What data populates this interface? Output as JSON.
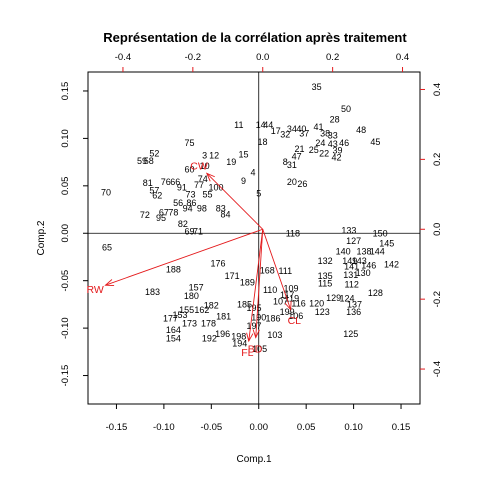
{
  "chart_data": {
    "type": "scatter",
    "subtype": "biplot",
    "title": "Représentation de la corrélation après traitement",
    "xlabel": "Comp.1",
    "ylabel": "Comp.2",
    "xlim": [
      -0.18,
      0.17
    ],
    "ylim": [
      -0.18,
      0.17
    ],
    "xticks": [
      -0.15,
      -0.1,
      -0.05,
      0.0,
      0.05,
      0.1,
      0.15
    ],
    "yticks": [
      -0.15,
      -0.1,
      -0.05,
      0.0,
      0.05,
      0.1,
      0.15
    ],
    "xtick_labels": [
      "-0.15",
      "-0.10",
      "-0.05",
      "0.00",
      "0.05",
      "0.10",
      "0.15"
    ],
    "ytick_labels": [
      "-0.15",
      "-0.10",
      "-0.05",
      "0.00",
      "0.05",
      "0.10",
      "0.15"
    ],
    "top_axis": {
      "lim": [
        -0.5,
        0.45
      ],
      "ticks": [
        -0.4,
        -0.2,
        0.0,
        0.2,
        0.4
      ],
      "tick_labels": [
        "-0.4",
        "-0.2",
        "0.0",
        "0.2",
        "0.4"
      ]
    },
    "right_axis": {
      "lim": [
        -0.5,
        0.45
      ],
      "ticks": [
        -0.4,
        -0.2,
        0.0,
        0.2,
        0.4
      ],
      "tick_labels": [
        "-0.4",
        "-0.2",
        "0.0",
        "0.2",
        "0.4"
      ]
    },
    "arrow_color": "#e41a1c",
    "variables": [
      {
        "name": "CW",
        "x": -0.16,
        "y": 0.16
      },
      {
        "name": "RW",
        "x": -0.45,
        "y": -0.16
      },
      {
        "name": "FL",
        "x": -0.04,
        "y": -0.32
      },
      {
        "name": "BD",
        "x": -0.02,
        "y": -0.31
      },
      {
        "name": "CL",
        "x": 0.08,
        "y": -0.23
      }
    ],
    "points": [
      [
        "35",
        0.061,
        0.154
      ],
      [
        "50",
        0.092,
        0.131
      ],
      [
        "28",
        0.08,
        0.12
      ],
      [
        "48",
        0.108,
        0.109
      ],
      [
        "45",
        0.123,
        0.096
      ],
      [
        "11",
        -0.021,
        0.114
      ],
      [
        "14",
        0.002,
        0.114
      ],
      [
        "44",
        0.01,
        0.114
      ],
      [
        "17",
        0.018,
        0.108
      ],
      [
        "32",
        0.028,
        0.104
      ],
      [
        "34",
        0.035,
        0.11
      ],
      [
        "40",
        0.045,
        0.11
      ],
      [
        "41",
        0.063,
        0.112
      ],
      [
        "37",
        0.048,
        0.105
      ],
      [
        "38",
        0.07,
        0.105
      ],
      [
        "33",
        0.078,
        0.103
      ],
      [
        "18",
        0.004,
        0.096
      ],
      [
        "21",
        0.043,
        0.089
      ],
      [
        "24",
        0.065,
        0.095
      ],
      [
        "43",
        0.078,
        0.094
      ],
      [
        "46",
        0.09,
        0.095
      ],
      [
        "25",
        0.058,
        0.088
      ],
      [
        "47",
        0.04,
        0.081
      ],
      [
        "22",
        0.069,
        0.084
      ],
      [
        "39",
        0.083,
        0.087
      ],
      [
        "42",
        0.082,
        0.08
      ],
      [
        "8",
        0.028,
        0.075
      ],
      [
        "31",
        0.035,
        0.072
      ],
      [
        "20",
        0.035,
        0.054
      ],
      [
        "26",
        0.046,
        0.052
      ],
      [
        "52",
        -0.11,
        0.084
      ],
      [
        "75",
        -0.073,
        0.095
      ],
      [
        "59",
        -0.123,
        0.076
      ],
      [
        "58",
        -0.116,
        0.076
      ],
      [
        "CW_",
        0,
        0
      ],
      [
        "3",
        -0.057,
        0.082
      ],
      [
        "12",
        -0.047,
        0.082
      ],
      [
        "15",
        -0.016,
        0.083
      ],
      [
        "10",
        -0.057,
        0.071
      ],
      [
        "19",
        -0.029,
        0.075
      ],
      [
        "60",
        -0.073,
        0.067
      ],
      [
        "4",
        -0.006,
        0.064
      ],
      [
        "74",
        -0.059,
        0.057
      ],
      [
        "9",
        -0.016,
        0.055
      ],
      [
        "70",
        -0.161,
        0.043
      ],
      [
        "81",
        -0.117,
        0.053
      ],
      [
        "76",
        -0.098,
        0.054
      ],
      [
        "66",
        -0.088,
        0.054
      ],
      [
        "91",
        -0.081,
        0.048
      ],
      [
        "77",
        -0.063,
        0.051
      ],
      [
        "100",
        -0.045,
        0.048
      ],
      [
        "57",
        -0.11,
        0.045
      ],
      [
        "62",
        -0.107,
        0.04
      ],
      [
        "73",
        -0.072,
        0.041
      ],
      [
        "55",
        -0.054,
        0.041
      ],
      [
        "5",
        0.0,
        0.042
      ],
      [
        "56",
        -0.085,
        0.032
      ],
      [
        "86",
        -0.071,
        0.032
      ],
      [
        "98",
        -0.06,
        0.026
      ],
      [
        "83",
        -0.04,
        0.026
      ],
      [
        "72",
        -0.12,
        0.019
      ],
      [
        "67",
        -0.1,
        0.022
      ],
      [
        "78",
        -0.09,
        0.022
      ],
      [
        "94",
        -0.075,
        0.026
      ],
      [
        "84",
        -0.035,
        0.02
      ],
      [
        "95",
        -0.103,
        0.016
      ],
      [
        "82",
        -0.08,
        0.01
      ],
      [
        "69",
        -0.073,
        0.002
      ],
      [
        "71",
        -0.064,
        0.002
      ],
      [
        "118",
        0.036,
        0.0
      ],
      [
        "65",
        -0.16,
        -0.015
      ],
      [
        "133",
        0.095,
        0.003
      ],
      [
        "150",
        0.128,
        0.0
      ],
      [
        "127",
        0.1,
        -0.008
      ],
      [
        "145",
        0.135,
        -0.011
      ],
      [
        "140",
        0.089,
        -0.019
      ],
      [
        "138",
        0.111,
        -0.019
      ],
      [
        "144",
        0.125,
        -0.019
      ],
      [
        "132",
        0.07,
        -0.029
      ],
      [
        "149",
        0.096,
        -0.029
      ],
      [
        "143",
        0.106,
        -0.029
      ],
      [
        "142",
        0.14,
        -0.033
      ],
      [
        "146",
        0.116,
        -0.034
      ],
      [
        "141",
        0.098,
        -0.035
      ],
      [
        "188",
        -0.09,
        -0.038
      ],
      [
        "176",
        -0.043,
        -0.032
      ],
      [
        "168",
        0.009,
        -0.039
      ],
      [
        "171",
        -0.028,
        -0.045
      ],
      [
        "111",
        0.028,
        -0.04
      ],
      [
        "135",
        0.07,
        -0.045
      ],
      [
        "131",
        0.097,
        -0.044
      ],
      [
        "130",
        0.11,
        -0.042
      ],
      [
        "115",
        0.07,
        -0.053
      ],
      [
        "112",
        0.098,
        -0.054
      ],
      [
        "189",
        -0.012,
        -0.052
      ],
      [
        "110",
        0.012,
        -0.06
      ],
      [
        "109",
        0.034,
        -0.058
      ],
      [
        "157",
        -0.066,
        -0.057
      ],
      [
        "183",
        -0.112,
        -0.062
      ],
      [
        "180",
        -0.071,
        -0.066
      ],
      [
        "128",
        0.123,
        -0.063
      ],
      [
        "117",
        0.03,
        -0.065
      ],
      [
        "107",
        0.023,
        -0.072
      ],
      [
        "119",
        0.035,
        -0.069
      ],
      [
        "129",
        0.079,
        -0.068
      ],
      [
        "124",
        0.093,
        -0.069
      ],
      [
        "116",
        0.042,
        -0.074
      ],
      [
        "120",
        0.061,
        -0.074
      ],
      [
        "137",
        0.101,
        -0.075
      ],
      [
        "123",
        0.067,
        -0.083
      ],
      [
        "136",
        0.1,
        -0.083
      ],
      [
        "155",
        -0.076,
        -0.081
      ],
      [
        "182",
        -0.05,
        -0.076
      ],
      [
        "185",
        -0.015,
        -0.075
      ],
      [
        "153",
        -0.083,
        -0.086
      ],
      [
        "162",
        -0.06,
        -0.081
      ],
      [
        "195",
        -0.005,
        -0.079
      ],
      [
        "199",
        0.03,
        -0.083
      ],
      [
        "106",
        0.039,
        -0.087
      ],
      [
        "177",
        -0.093,
        -0.09
      ],
      [
        "173",
        -0.073,
        -0.095
      ],
      [
        "178",
        -0.053,
        -0.095
      ],
      [
        "181",
        -0.037,
        -0.088
      ],
      [
        "186",
        0.015,
        -0.09
      ],
      [
        "190",
        0.0,
        -0.089
      ],
      [
        "164",
        -0.09,
        -0.102
      ],
      [
        "197",
        -0.005,
        -0.098
      ],
      [
        "188_",
        0,
        0
      ],
      [
        "125",
        0.097,
        -0.106
      ],
      [
        "103",
        0.017,
        -0.107
      ],
      [
        "154",
        -0.09,
        -0.111
      ],
      [
        "192",
        -0.052,
        -0.111
      ],
      [
        "196",
        -0.038,
        -0.106
      ],
      [
        "198",
        -0.021,
        -0.109
      ],
      [
        "194",
        -0.02,
        -0.116
      ],
      [
        "105",
        0.001,
        -0.122
      ]
    ]
  }
}
